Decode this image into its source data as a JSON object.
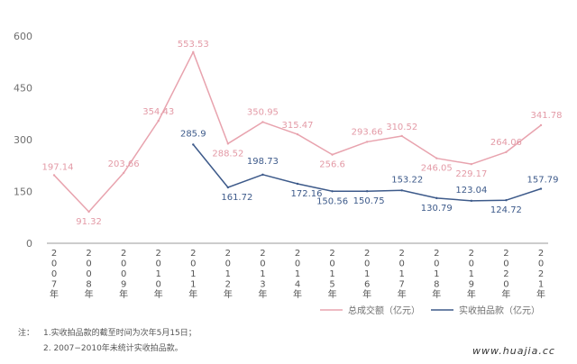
{
  "chart_data": {
    "type": "line",
    "categories": [
      "2007年",
      "2008年",
      "2009年",
      "2010年",
      "2011年",
      "2012年",
      "2013年",
      "2014年",
      "2015年",
      "2016年",
      "2017年",
      "2018年",
      "2019年",
      "2020年",
      "2021年"
    ],
    "series": [
      {
        "name": "总成交额（亿元）",
        "color": "#e8a3ae",
        "values": [
          197.14,
          91.32,
          203.66,
          354.43,
          553.53,
          288.52,
          350.95,
          315.47,
          256.6,
          293.66,
          310.52,
          246.05,
          229.17,
          264.06,
          341.78
        ],
        "labels": [
          "197.14",
          "91.32",
          "203.66",
          "354.43",
          "553.53",
          "288.52",
          "350.95",
          "315.47",
          "256.6",
          "293.66",
          "310.52",
          "246.05",
          "229.17",
          "264.06",
          "341.78"
        ]
      },
      {
        "name": "实收拍品款（亿元）",
        "color": "#3d5a8a",
        "values": [
          null,
          null,
          null,
          null,
          285.9,
          161.72,
          198.73,
          172.16,
          150.56,
          150.75,
          153.22,
          130.79,
          123.04,
          124.72,
          157.79
        ],
        "labels": [
          null,
          null,
          null,
          null,
          "285.9",
          "161.72",
          "198.73",
          "172.16",
          "150.56",
          "150.75",
          "153.22",
          "130.79",
          "123.04",
          "124.72",
          "157.79"
        ]
      }
    ],
    "yticks": [
      "0",
      "150",
      "300",
      "450",
      "600"
    ],
    "ylim": [
      0,
      600
    ],
    "grid": false,
    "legend_position": "bottom-right"
  },
  "notes": {
    "prefix": "注：",
    "line1": "1.实收拍品款的截至时间为次年5月15日；",
    "line2": "2. 2007−2010年未统计实收拍品款。"
  },
  "watermark": "www.huajia.cc"
}
